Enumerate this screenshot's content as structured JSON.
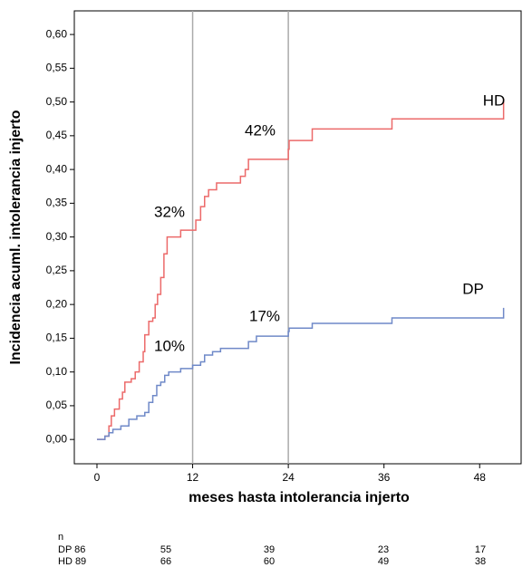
{
  "chart_data": {
    "type": "step",
    "xlabel": "meses hasta intolerancia injerto",
    "ylabel": "Incidencia acuml. intolerancia injerto",
    "xlim": [
      -2.84,
      53.2
    ],
    "ylim": [
      -0.036,
      0.635
    ],
    "xticks": [
      0,
      12,
      24,
      36,
      48
    ],
    "yticks": [
      {
        "value": 0,
        "label": "0,00"
      },
      {
        "value": 0.05,
        "label": "0,05"
      },
      {
        "value": 0.1,
        "label": "0,10"
      },
      {
        "value": 0.15,
        "label": "0,15"
      },
      {
        "value": 0.2,
        "label": "0,20"
      },
      {
        "value": 0.25,
        "label": "0,25"
      },
      {
        "value": 0.3,
        "label": "0,30"
      },
      {
        "value": 0.35,
        "label": "0,35"
      },
      {
        "value": 0.4,
        "label": "0,40"
      },
      {
        "value": 0.45,
        "label": "0,45"
      },
      {
        "value": 0.5,
        "label": "0,50"
      },
      {
        "value": 0.55,
        "label": "0,55"
      },
      {
        "value": 0.6,
        "label": "0,60"
      }
    ],
    "reference_lines": [
      12,
      24
    ],
    "series": [
      {
        "name": "HD",
        "color": "#ec6a6a",
        "x": [
          0,
          1,
          1.5,
          1.8,
          2.2,
          2.8,
          3.2,
          3.5,
          4.3,
          4.8,
          5.3,
          5.8,
          6,
          6.5,
          7,
          7.3,
          7.6,
          8,
          8.4,
          8.8,
          10.5,
          12.4,
          13,
          13.5,
          14,
          15,
          18,
          18.6,
          19,
          24,
          24.1,
          27,
          37,
          51
        ],
        "values": [
          0,
          0.005,
          0.02,
          0.035,
          0.045,
          0.06,
          0.07,
          0.085,
          0.09,
          0.1,
          0.115,
          0.13,
          0.155,
          0.175,
          0.18,
          0.2,
          0.215,
          0.24,
          0.275,
          0.3,
          0.31,
          0.325,
          0.345,
          0.36,
          0.37,
          0.38,
          0.39,
          0.4,
          0.415,
          0.43,
          0.443,
          0.46,
          0.475,
          0.505
        ]
      },
      {
        "name": "DP",
        "color": "#6f89c8",
        "x": [
          0,
          1,
          1.5,
          2,
          3,
          4,
          5,
          6,
          6.5,
          7,
          7.5,
          8,
          8.5,
          9,
          10.5,
          12,
          13,
          13.5,
          14.5,
          15.5,
          19,
          20,
          24,
          24.1,
          27,
          37,
          51
        ],
        "values": [
          0,
          0.005,
          0.01,
          0.015,
          0.02,
          0.03,
          0.035,
          0.04,
          0.055,
          0.065,
          0.08,
          0.085,
          0.095,
          0.1,
          0.105,
          0.11,
          0.115,
          0.125,
          0.13,
          0.135,
          0.145,
          0.153,
          0.16,
          0.165,
          0.172,
          0.18,
          0.195
        ]
      }
    ],
    "annotations": [
      "32%",
      "42%",
      "10%",
      "17%"
    ],
    "risk_table": {
      "header": "n",
      "rows": [
        {
          "label": "DP 86",
          "values": [
            55,
            39,
            23,
            17
          ]
        },
        {
          "label": "HD 89",
          "values": [
            66,
            60,
            49,
            38
          ]
        }
      ]
    }
  }
}
